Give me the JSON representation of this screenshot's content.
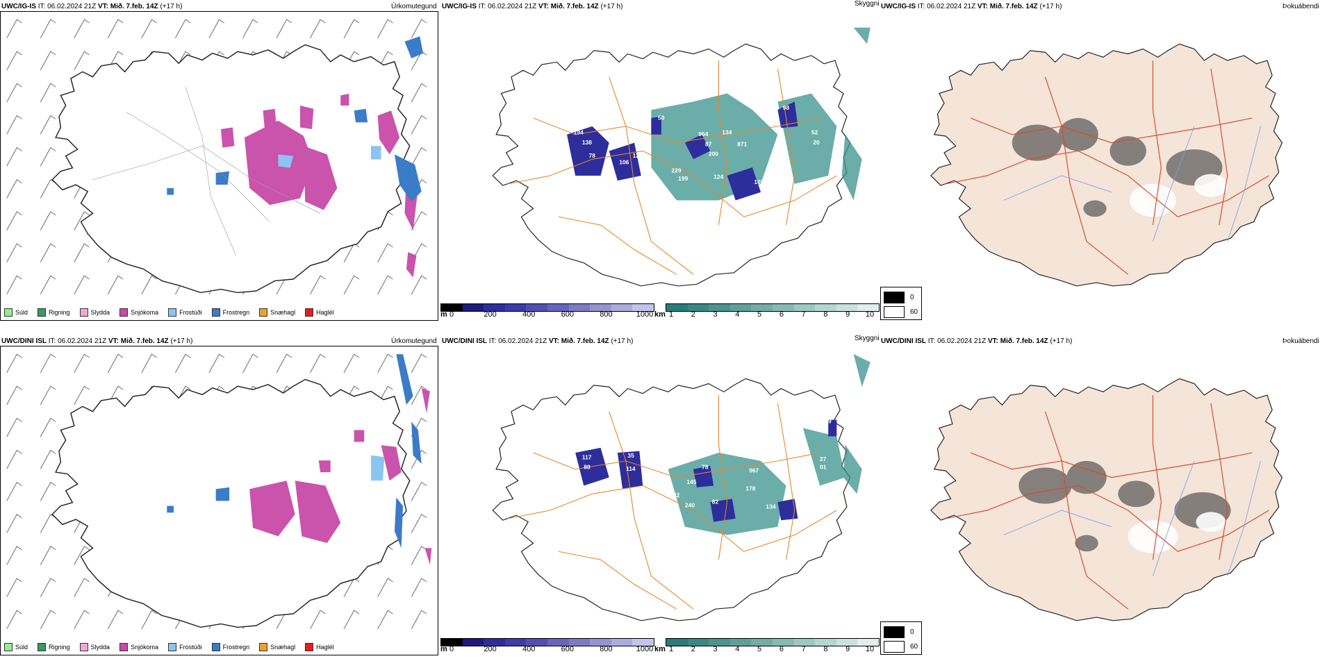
{
  "rows": [
    {
      "model": "UWC/IG-IS",
      "it_label": "IT:",
      "it_value": "06.02.2024 21Z",
      "vt_label": "VT:",
      "vt_value": "Mið. 7.feb. 14Z",
      "lead": "(+17 h)"
    },
    {
      "model": "UWC/DINI ISL",
      "it_label": "IT:",
      "it_value": "06.02.2024 21Z",
      "vt_label": "VT:",
      "vt_value": "Mið. 7.feb. 14Z",
      "lead": "(+17 h)"
    }
  ],
  "panel_titles": {
    "precip": "Úrkomutegund",
    "visibility": "Skyggni",
    "fog": "Þokuábendi"
  },
  "precip_legend": [
    {
      "label": "Súld",
      "color": "#90ee90"
    },
    {
      "label": "Rigning",
      "color": "#3a9a5f"
    },
    {
      "label": "Slydda",
      "color": "#f4a6d8"
    },
    {
      "label": "Snjókoma",
      "color": "#c84aa8"
    },
    {
      "label": "Frostúði",
      "color": "#8cc4f0"
    },
    {
      "label": "Frostregn",
      "color": "#3a7cc8"
    },
    {
      "label": "Snæhagl",
      "color": "#f0a030"
    },
    {
      "label": "Haglél",
      "color": "#e81c1c"
    }
  ],
  "cloudbase_bar": {
    "unit": "m",
    "labels": [
      "0",
      "200",
      "400",
      "600",
      "800",
      "1000"
    ],
    "colors": [
      "#000000",
      "#1c1c7c",
      "#2d2d9c",
      "#3c3cac",
      "#5050b4",
      "#6666bc",
      "#7c7cc4",
      "#9494d0",
      "#acacdc",
      "#c4c4e8"
    ]
  },
  "visibility_bar": {
    "unit": "km",
    "labels": [
      "1",
      "2",
      "3",
      "4",
      "5",
      "6",
      "7",
      "8",
      "9",
      "10"
    ],
    "colors": [
      "#2a7c78",
      "#3a8884",
      "#4c948e",
      "#60a09a",
      "#74aca6",
      "#88bab4",
      "#9ec8c2",
      "#b4d6d0",
      "#cae2de",
      "#e0efec"
    ]
  },
  "fog_legend": {
    "items": [
      {
        "label": "0",
        "color": "#000000"
      },
      {
        "label": "60",
        "color": "#ffffff"
      }
    ]
  },
  "visibility_labels_top": [
    "194",
    "138",
    "78",
    "106",
    "120",
    "50",
    "964",
    "87",
    "134",
    "871",
    "200",
    "229",
    "199",
    "124",
    "103",
    "98",
    "52",
    "20"
  ],
  "visibility_labels_bottom": [
    "117",
    "88",
    "114",
    "35",
    "78",
    "145",
    "967",
    "232",
    "240",
    "82",
    "178",
    "134",
    "27",
    "01",
    "09"
  ],
  "colors": {
    "land_fill": "#f5e4d8",
    "road_orange": "#e8862a",
    "road_red": "#d94c2a",
    "snow_pink": "#c84aa8",
    "frost_blue": "#3a7cc8",
    "vis_teal": "#3a928c",
    "cloudbase_navy": "#2d2d9c"
  }
}
